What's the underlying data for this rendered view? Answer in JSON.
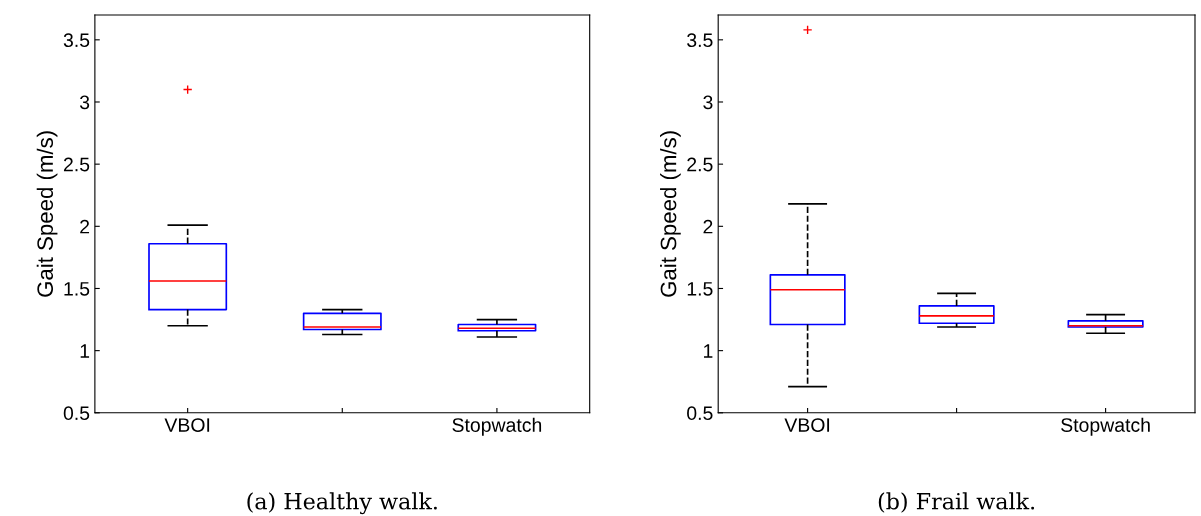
{
  "chart_data": [
    {
      "type": "box",
      "title": "(a) Healthy walk.",
      "ylabel": "Gait Speed (m/s)",
      "categories": [
        "VBOI",
        null,
        "Stopwatch"
      ],
      "ylim": [
        0.5,
        3.7
      ],
      "yticks": [
        0.5,
        1,
        1.5,
        2,
        2.5,
        3,
        3.5
      ],
      "grid": false,
      "legend": false,
      "marker": "cross",
      "line_style": "dashed",
      "boxes": [
        {
          "low": 1.2,
          "q1": 1.33,
          "median": 1.56,
          "q3": 1.86,
          "high": 2.01,
          "outliers": [
            3.1
          ]
        },
        {
          "low": 1.13,
          "q1": 1.17,
          "median": 1.19,
          "q3": 1.3,
          "high": 1.33
        },
        {
          "low": 1.11,
          "q1": 1.16,
          "median": 1.18,
          "q3": 1.21,
          "high": 1.25
        }
      ]
    },
    {
      "type": "box",
      "title": "(b) Frail walk.",
      "ylabel": "Gait Speed (m/s)",
      "categories": [
        "VBOI",
        null,
        "Stopwatch"
      ],
      "ylim": [
        0.5,
        3.7
      ],
      "yticks": [
        0.5,
        1,
        1.5,
        2,
        2.5,
        3,
        3.5
      ],
      "grid": false,
      "legend": false,
      "marker": "cross",
      "line_style": "dashed",
      "boxes": [
        {
          "low": 0.71,
          "q1": 1.21,
          "median": 1.49,
          "q3": 1.61,
          "high": 2.18,
          "outliers": [
            3.58
          ]
        },
        {
          "low": 1.19,
          "q1": 1.22,
          "median": 1.28,
          "q3": 1.36,
          "high": 1.46
        },
        {
          "low": 1.14,
          "q1": 1.19,
          "median": 1.2,
          "q3": 1.24,
          "high": 1.29
        }
      ]
    }
  ]
}
